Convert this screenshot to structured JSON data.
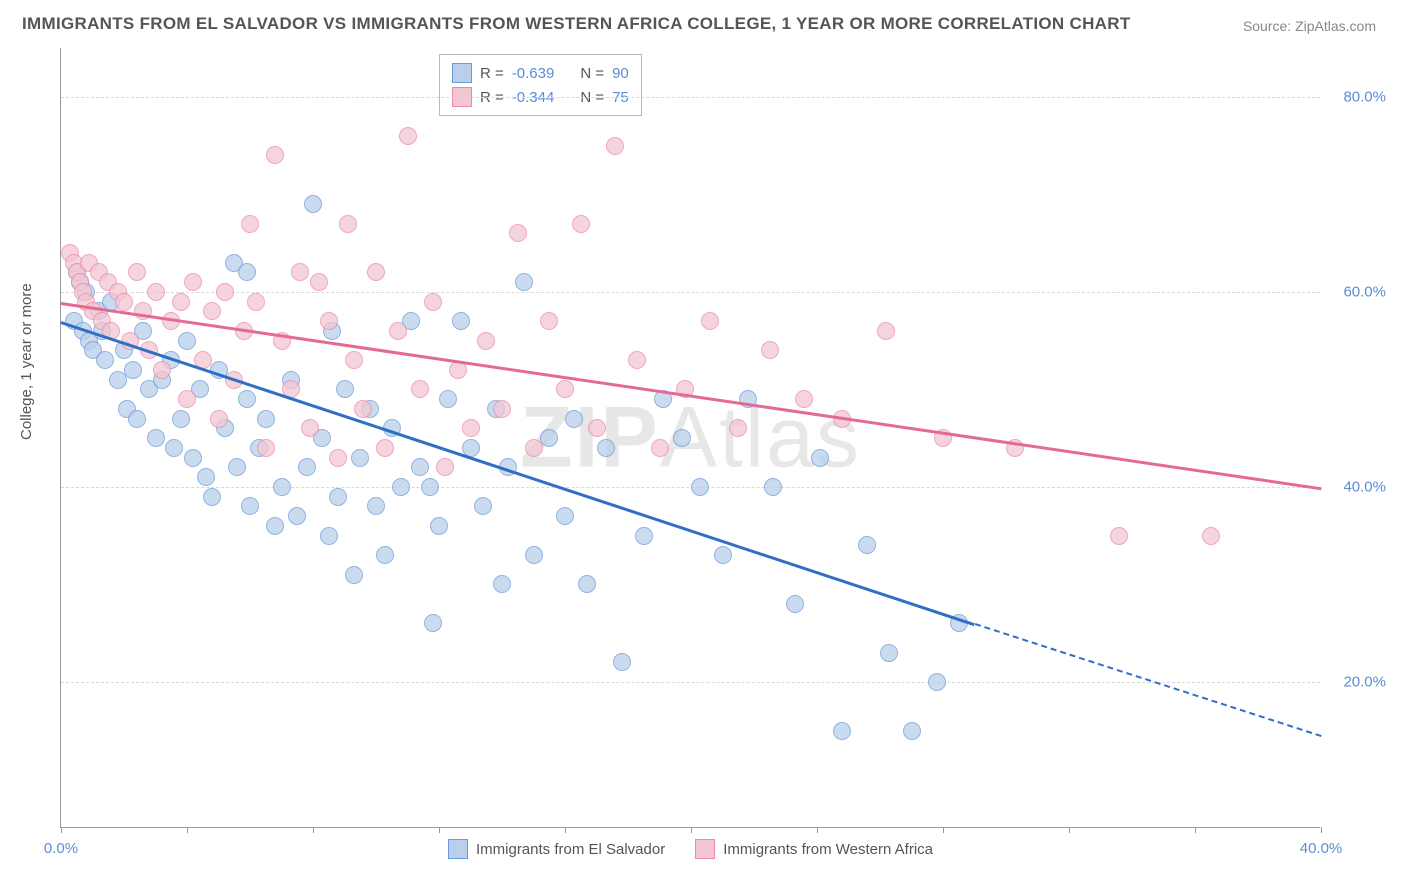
{
  "title": "IMMIGRANTS FROM EL SALVADOR VS IMMIGRANTS FROM WESTERN AFRICA COLLEGE, 1 YEAR OR MORE CORRELATION CHART",
  "source": "Source: ZipAtlas.com",
  "y_axis_label": "College, 1 year or more",
  "watermark": "ZIPAtlas",
  "chart": {
    "type": "scatter",
    "xlim": [
      0,
      40
    ],
    "ylim": [
      5,
      85
    ],
    "x_ticks": [
      0,
      4,
      8,
      12,
      16,
      20,
      24,
      28,
      32,
      36,
      40
    ],
    "x_tick_labels": {
      "0": "0.0%",
      "40": "40.0%"
    },
    "y_ticks": [
      20,
      40,
      60,
      80
    ],
    "y_tick_labels": [
      "20.0%",
      "40.0%",
      "60.0%",
      "80.0%"
    ],
    "grid_color": "#d8d8d8",
    "axis_color": "#999999",
    "background_color": "#ffffff",
    "label_color": "#5b8dd6"
  },
  "legend": {
    "series1": {
      "r_label": "R =",
      "r_value": "-0.639",
      "n_label": "N =",
      "n_value": "90"
    },
    "series2": {
      "r_label": "R =",
      "r_value": "-0.344",
      "n_label": "N =",
      "n_value": "75"
    }
  },
  "series": [
    {
      "name": "Immigrants from El Salvador",
      "fill": "#b9cfeb",
      "stroke": "#6d9bd8",
      "trend_color": "#2f6fc4",
      "trend": {
        "x1": 0,
        "y1": 57,
        "x2": 29,
        "y2": 26,
        "dash_to_x": 40,
        "dash_to_y": 14.5
      },
      "points": [
        [
          0.5,
          62
        ],
        [
          0.6,
          61
        ],
        [
          0.8,
          60
        ],
        [
          0.4,
          57
        ],
        [
          0.7,
          56
        ],
        [
          0.9,
          55
        ],
        [
          1.2,
          58
        ],
        [
          1.0,
          54
        ],
        [
          1.3,
          56
        ],
        [
          1.4,
          53
        ],
        [
          1.6,
          59
        ],
        [
          1.8,
          51
        ],
        [
          2.0,
          54
        ],
        [
          2.1,
          48
        ],
        [
          2.3,
          52
        ],
        [
          2.4,
          47
        ],
        [
          2.6,
          56
        ],
        [
          2.8,
          50
        ],
        [
          3.0,
          45
        ],
        [
          3.2,
          51
        ],
        [
          3.5,
          53
        ],
        [
          3.6,
          44
        ],
        [
          3.8,
          47
        ],
        [
          4.0,
          55
        ],
        [
          4.2,
          43
        ],
        [
          4.4,
          50
        ],
        [
          4.6,
          41
        ],
        [
          4.8,
          39
        ],
        [
          5.0,
          52
        ],
        [
          5.2,
          46
        ],
        [
          5.5,
          63
        ],
        [
          5.6,
          42
        ],
        [
          5.9,
          49
        ],
        [
          6.0,
          38
        ],
        [
          6.3,
          44
        ],
        [
          6.5,
          47
        ],
        [
          6.8,
          36
        ],
        [
          7.0,
          40
        ],
        [
          7.3,
          51
        ],
        [
          7.5,
          37
        ],
        [
          7.8,
          42
        ],
        [
          8.0,
          69
        ],
        [
          8.3,
          45
        ],
        [
          8.5,
          35
        ],
        [
          8.8,
          39
        ],
        [
          9.0,
          50
        ],
        [
          9.3,
          31
        ],
        [
          9.5,
          43
        ],
        [
          9.8,
          48
        ],
        [
          10.0,
          38
        ],
        [
          10.3,
          33
        ],
        [
          10.5,
          46
        ],
        [
          10.8,
          40
        ],
        [
          11.1,
          57
        ],
        [
          11.4,
          42
        ],
        [
          11.8,
          26
        ],
        [
          12.0,
          36
        ],
        [
          12.3,
          49
        ],
        [
          12.7,
          57
        ],
        [
          13.0,
          44
        ],
        [
          13.4,
          38
        ],
        [
          13.8,
          48
        ],
        [
          14.2,
          42
        ],
        [
          14.7,
          61
        ],
        [
          15.0,
          33
        ],
        [
          15.5,
          45
        ],
        [
          16.0,
          37
        ],
        [
          16.3,
          47
        ],
        [
          16.7,
          30
        ],
        [
          17.3,
          44
        ],
        [
          17.8,
          22
        ],
        [
          18.5,
          35
        ],
        [
          19.1,
          49
        ],
        [
          19.7,
          45
        ],
        [
          20.3,
          40
        ],
        [
          21.0,
          33
        ],
        [
          21.8,
          49
        ],
        [
          22.6,
          40
        ],
        [
          23.3,
          28
        ],
        [
          24.1,
          43
        ],
        [
          24.8,
          15
        ],
        [
          25.6,
          34
        ],
        [
          26.3,
          23
        ],
        [
          27.0,
          15
        ],
        [
          27.8,
          20
        ],
        [
          28.5,
          26
        ],
        [
          5.9,
          62
        ],
        [
          8.6,
          56
        ],
        [
          11.7,
          40
        ],
        [
          14.0,
          30
        ]
      ]
    },
    {
      "name": "Immigrants from Western Africa",
      "fill": "#f4c6d2",
      "stroke": "#e98ba8",
      "trend_color": "#e46a94",
      "trend": {
        "x1": 0,
        "y1": 59,
        "x2": 40,
        "y2": 40
      },
      "points": [
        [
          0.3,
          64
        ],
        [
          0.4,
          63
        ],
        [
          0.5,
          62
        ],
        [
          0.6,
          61
        ],
        [
          0.7,
          60
        ],
        [
          0.8,
          59
        ],
        [
          0.9,
          63
        ],
        [
          1.0,
          58
        ],
        [
          1.2,
          62
        ],
        [
          1.3,
          57
        ],
        [
          1.5,
          61
        ],
        [
          1.6,
          56
        ],
        [
          1.8,
          60
        ],
        [
          2.0,
          59
        ],
        [
          2.2,
          55
        ],
        [
          2.4,
          62
        ],
        [
          2.6,
          58
        ],
        [
          2.8,
          54
        ],
        [
          3.0,
          60
        ],
        [
          3.2,
          52
        ],
        [
          3.5,
          57
        ],
        [
          3.8,
          59
        ],
        [
          4.0,
          49
        ],
        [
          4.2,
          61
        ],
        [
          4.5,
          53
        ],
        [
          4.8,
          58
        ],
        [
          5.0,
          47
        ],
        [
          5.2,
          60
        ],
        [
          5.5,
          51
        ],
        [
          5.8,
          56
        ],
        [
          6.0,
          67
        ],
        [
          6.2,
          59
        ],
        [
          6.5,
          44
        ],
        [
          6.8,
          74
        ],
        [
          7.0,
          55
        ],
        [
          7.3,
          50
        ],
        [
          7.6,
          62
        ],
        [
          7.9,
          46
        ],
        [
          8.2,
          61
        ],
        [
          8.5,
          57
        ],
        [
          8.8,
          43
        ],
        [
          9.1,
          67
        ],
        [
          9.3,
          53
        ],
        [
          9.6,
          48
        ],
        [
          10.0,
          62
        ],
        [
          10.3,
          44
        ],
        [
          10.7,
          56
        ],
        [
          11.0,
          76
        ],
        [
          11.4,
          50
        ],
        [
          11.8,
          59
        ],
        [
          12.2,
          42
        ],
        [
          12.6,
          52
        ],
        [
          13.0,
          46
        ],
        [
          13.5,
          55
        ],
        [
          14.0,
          48
        ],
        [
          14.5,
          66
        ],
        [
          15.0,
          44
        ],
        [
          15.5,
          57
        ],
        [
          16.0,
          50
        ],
        [
          16.5,
          67
        ],
        [
          17.0,
          46
        ],
        [
          17.6,
          75
        ],
        [
          18.3,
          53
        ],
        [
          19.0,
          44
        ],
        [
          19.8,
          50
        ],
        [
          20.6,
          57
        ],
        [
          21.5,
          46
        ],
        [
          22.5,
          54
        ],
        [
          23.6,
          49
        ],
        [
          24.8,
          47
        ],
        [
          26.2,
          56
        ],
        [
          28.0,
          45
        ],
        [
          30.3,
          44
        ],
        [
          33.6,
          35
        ],
        [
          36.5,
          35
        ]
      ]
    }
  ]
}
